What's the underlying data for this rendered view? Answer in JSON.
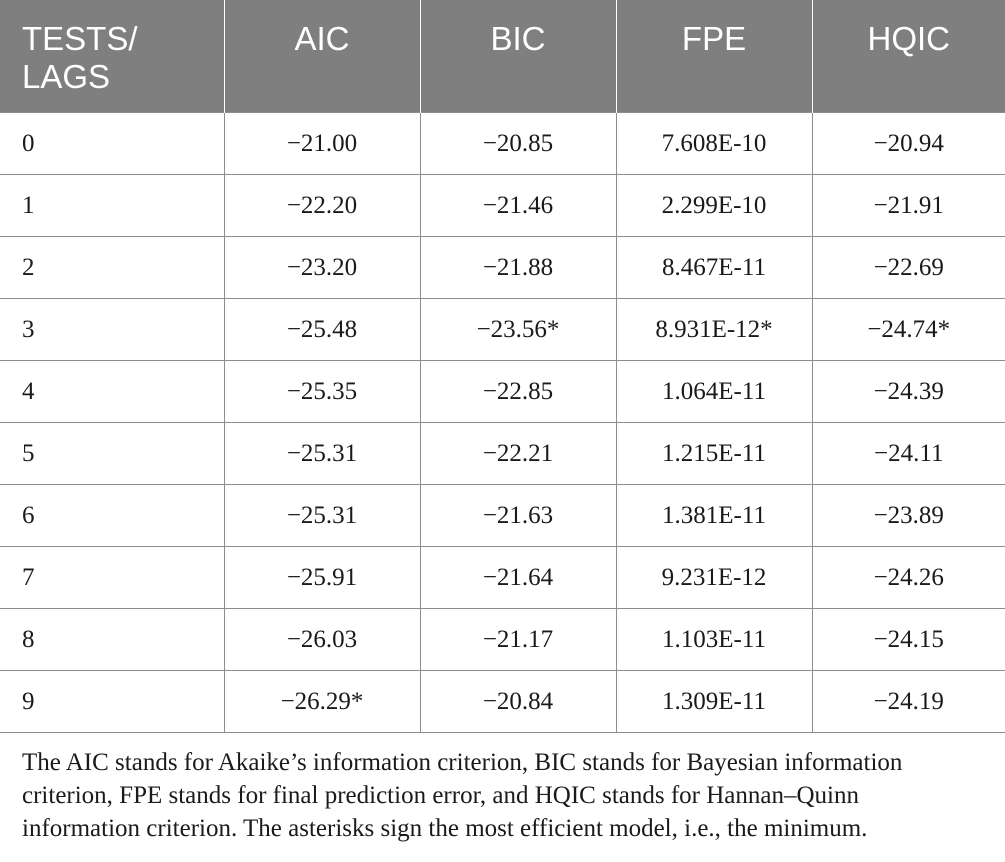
{
  "table": {
    "headers": [
      "TESTS/\nLAGS",
      "AIC",
      "BIC",
      "FPE",
      "HQIC"
    ],
    "rows": [
      [
        "0",
        "−21.00",
        "−20.85",
        "7.608E-10",
        "−20.94"
      ],
      [
        "1",
        "−22.20",
        "−21.46",
        "2.299E-10",
        "−21.91"
      ],
      [
        "2",
        "−23.20",
        "−21.88",
        "8.467E-11",
        "−22.69"
      ],
      [
        "3",
        "−25.48",
        "−23.56*",
        "8.931E-12*",
        "−24.74*"
      ],
      [
        "4",
        "−25.35",
        "−22.85",
        "1.064E-11",
        "−24.39"
      ],
      [
        "5",
        "−25.31",
        "−22.21",
        "1.215E-11",
        "−24.11"
      ],
      [
        "6",
        "−25.31",
        "−21.63",
        "1.381E-11",
        "−23.89"
      ],
      [
        "7",
        "−25.91",
        "−21.64",
        "9.231E-12",
        "−24.26"
      ],
      [
        "8",
        "−26.03",
        "−21.17",
        "1.103E-11",
        "−24.15"
      ],
      [
        "9",
        "−26.29*",
        "−20.84",
        "1.309E-11",
        "−24.19"
      ]
    ]
  },
  "note": "The AIC stands for Akaike’s information criterion, BIC stands for Bayesian information criterion, FPE stands for final prediction error, and HQIC stands for Hannan–Quinn information criterion. The asterisks sign the most efficient model, i.e., the minimum.",
  "colors": {
    "header_bg": "#7f7f7f",
    "header_text": "#ffffff",
    "grid_line": "#8c8c8c",
    "body_text": "#1a1a1a"
  }
}
